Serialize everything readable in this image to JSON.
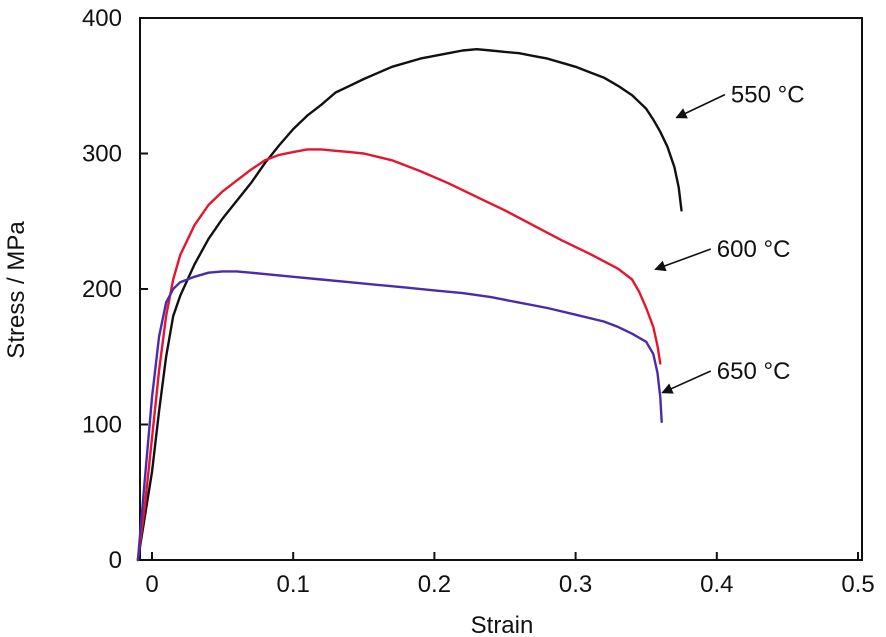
{
  "chart_data": {
    "type": "line",
    "xlabel": "Strain",
    "ylabel": "Stress / MPa",
    "xlim": [
      -0.01,
      0.5
    ],
    "ylim": [
      0,
      400
    ],
    "xticks": [
      0,
      0.1,
      0.2,
      0.3,
      0.4,
      0.5
    ],
    "xtick_labels": [
      "0",
      "0.1",
      "0.2",
      "0.3",
      "0.4",
      "0.5"
    ],
    "yticks": [
      0,
      100,
      200,
      300,
      400
    ],
    "ytick_labels": [
      "0",
      "100",
      "200",
      "300",
      "400"
    ],
    "grid": false,
    "legend": "none",
    "series": [
      {
        "name": "550 °C",
        "color": "#111111",
        "label_anchor": [
          0.37,
          325
        ],
        "label_pos": [
          0.41,
          342
        ],
        "x": [
          -0.01,
          0.0,
          0.005,
          0.01,
          0.015,
          0.02,
          0.03,
          0.04,
          0.05,
          0.06,
          0.07,
          0.08,
          0.09,
          0.1,
          0.11,
          0.12,
          0.13,
          0.14,
          0.15,
          0.17,
          0.19,
          0.21,
          0.22,
          0.23,
          0.24,
          0.25,
          0.26,
          0.27,
          0.28,
          0.29,
          0.3,
          0.31,
          0.32,
          0.33,
          0.34,
          0.35,
          0.355,
          0.36,
          0.365,
          0.37,
          0.373,
          0.375
        ],
        "y": [
          0,
          65,
          110,
          150,
          180,
          195,
          218,
          237,
          252,
          265,
          278,
          293,
          306,
          318,
          328,
          336,
          345,
          350,
          355,
          364,
          370,
          374,
          376,
          377,
          376,
          375,
          374,
          372,
          370,
          367,
          364,
          360,
          356,
          350,
          343,
          333,
          325,
          316,
          305,
          290,
          275,
          258
        ]
      },
      {
        "name": "600 °C",
        "color": "#e8142f",
        "label_anchor": [
          0.355,
          213
        ],
        "label_pos": [
          0.4,
          228
        ],
        "x": [
          -0.01,
          -0.005,
          0.0,
          0.005,
          0.01,
          0.015,
          0.02,
          0.03,
          0.04,
          0.05,
          0.06,
          0.07,
          0.08,
          0.09,
          0.1,
          0.11,
          0.12,
          0.13,
          0.14,
          0.15,
          0.17,
          0.19,
          0.21,
          0.23,
          0.25,
          0.27,
          0.29,
          0.31,
          0.33,
          0.34,
          0.345,
          0.35,
          0.355,
          0.358,
          0.36
        ],
        "y": [
          0,
          40,
          90,
          140,
          180,
          207,
          225,
          247,
          262,
          272,
          280,
          288,
          295,
          299,
          301,
          303,
          303,
          302,
          301,
          300,
          295,
          287,
          278,
          268,
          258,
          247,
          236,
          226,
          215,
          207,
          198,
          186,
          172,
          158,
          145
        ]
      },
      {
        "name": "650 °C",
        "color": "#4a2ca8",
        "label_anchor": [
          0.36,
          122
        ],
        "label_pos": [
          0.4,
          138
        ],
        "x": [
          -0.01,
          -0.005,
          0.0,
          0.005,
          0.01,
          0.015,
          0.02,
          0.03,
          0.04,
          0.05,
          0.06,
          0.07,
          0.08,
          0.1,
          0.12,
          0.14,
          0.16,
          0.18,
          0.2,
          0.22,
          0.24,
          0.26,
          0.28,
          0.3,
          0.32,
          0.33,
          0.34,
          0.35,
          0.355,
          0.358,
          0.36,
          0.361
        ],
        "y": [
          0,
          60,
          120,
          165,
          190,
          200,
          205,
          209,
          212,
          213,
          213,
          212,
          211,
          209,
          207,
          205,
          203,
          201,
          199,
          197,
          194,
          190,
          186,
          181,
          176,
          172,
          167,
          161,
          152,
          138,
          120,
          102
        ]
      }
    ]
  }
}
